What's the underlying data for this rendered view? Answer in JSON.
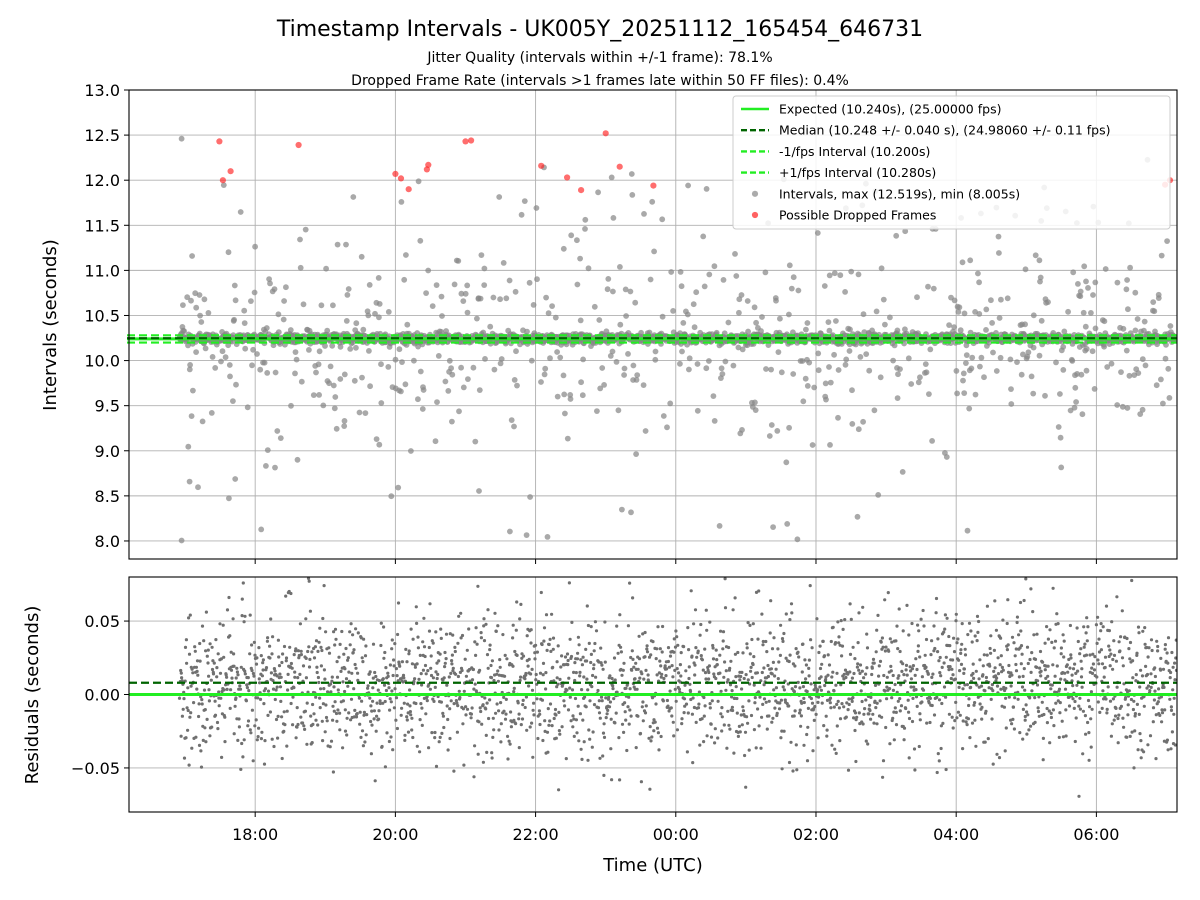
{
  "chart_data": [
    {
      "type": "scatter",
      "title": "Timestamp Intervals - UK005Y_20251112_165454_646731",
      "subtitles": [
        "Jitter Quality (intervals within +/-1 frame): 78.1%",
        "Dropped Frame Rate (intervals >1 frames late within 50 FF files): 0.4%"
      ],
      "xlabel": "",
      "ylabel": "Intervals (seconds)",
      "ylim": [
        7.8,
        13.0
      ],
      "xlim_hours": [
        16.2,
        31.15
      ],
      "yticks": [
        8.0,
        8.5,
        9.0,
        9.5,
        10.0,
        10.5,
        11.0,
        11.5,
        12.0,
        12.5,
        13.0
      ],
      "ytick_labels": [
        "8.0",
        "8.5",
        "9.0",
        "9.5",
        "10.0",
        "10.5",
        "11.0",
        "11.5",
        "12.0",
        "12.5",
        "13.0"
      ],
      "grid": true,
      "legend_position": "top-right",
      "lines": [
        {
          "name": "Expected (10.240s), (25.00000 fps)",
          "y": 10.24,
          "color": "#22ee22",
          "style": "solid"
        },
        {
          "name": "Median (10.248 +/- 0.040 s), (24.98060 +/- 0.11 fps)",
          "y": 10.248,
          "color": "#006400",
          "style": "dashed"
        },
        {
          "name": "-1/fps Interval (10.200s)",
          "y": 10.2,
          "color": "#22ee22",
          "style": "dashed"
        },
        {
          "name": "+1/fps Interval (10.280s)",
          "y": 10.28,
          "color": "#22ee22",
          "style": "dashed"
        }
      ],
      "series": [
        {
          "name": "Intervals, max (12.519s), min (8.005s)",
          "color": "#808080",
          "max": 12.519,
          "min": 8.005,
          "summary": "about 2600 points from 16:55 to 07:10 UTC, concentrated in the 10.2-10.3 s band with scatter between 8.0 and 12.5 s"
        },
        {
          "name": "Possible Dropped Frames",
          "color": "#ff2020",
          "points": [
            [
              17.49,
              12.43
            ],
            [
              17.54,
              12.0
            ],
            [
              17.65,
              12.1
            ],
            [
              18.62,
              12.39
            ],
            [
              20.0,
              12.07
            ],
            [
              20.08,
              12.02
            ],
            [
              20.19,
              11.9
            ],
            [
              20.45,
              12.12
            ],
            [
              20.47,
              12.17
            ],
            [
              21.0,
              12.43
            ],
            [
              21.08,
              12.44
            ],
            [
              22.08,
              12.16
            ],
            [
              22.45,
              12.03
            ],
            [
              22.65,
              11.89
            ],
            [
              23.0,
              12.52
            ],
            [
              23.2,
              12.15
            ],
            [
              23.68,
              11.94
            ],
            [
              30.98,
              11.95
            ],
            [
              31.05,
              12.0
            ]
          ]
        }
      ]
    },
    {
      "type": "scatter",
      "title": "",
      "xlabel": "Time (UTC)",
      "ylabel": "Residuals (seconds)",
      "ylim": [
        -0.08,
        0.08
      ],
      "xlim_hours": [
        16.2,
        31.15
      ],
      "yticks": [
        -0.05,
        0.0,
        0.05
      ],
      "ytick_labels": [
        "−0.05",
        "0.00",
        "0.05"
      ],
      "xticks_hours": [
        18,
        20,
        22,
        24,
        26,
        28,
        30
      ],
      "xtick_labels": [
        "18:00",
        "20:00",
        "22:00",
        "00:00",
        "02:00",
        "04:00",
        "06:00"
      ],
      "grid": true,
      "lines": [
        {
          "name": "zero",
          "y": 0.0,
          "color": "#22ee22",
          "style": "solid"
        },
        {
          "name": "median residual",
          "y": 0.008,
          "color": "#006400",
          "style": "dashed"
        }
      ],
      "series": [
        {
          "name": "Residuals",
          "color": "#707070",
          "summary": "about 2600 points from 16:55 to 07:10 UTC, spread between -0.08 and 0.08 s centered near 0.008 s"
        }
      ]
    }
  ]
}
